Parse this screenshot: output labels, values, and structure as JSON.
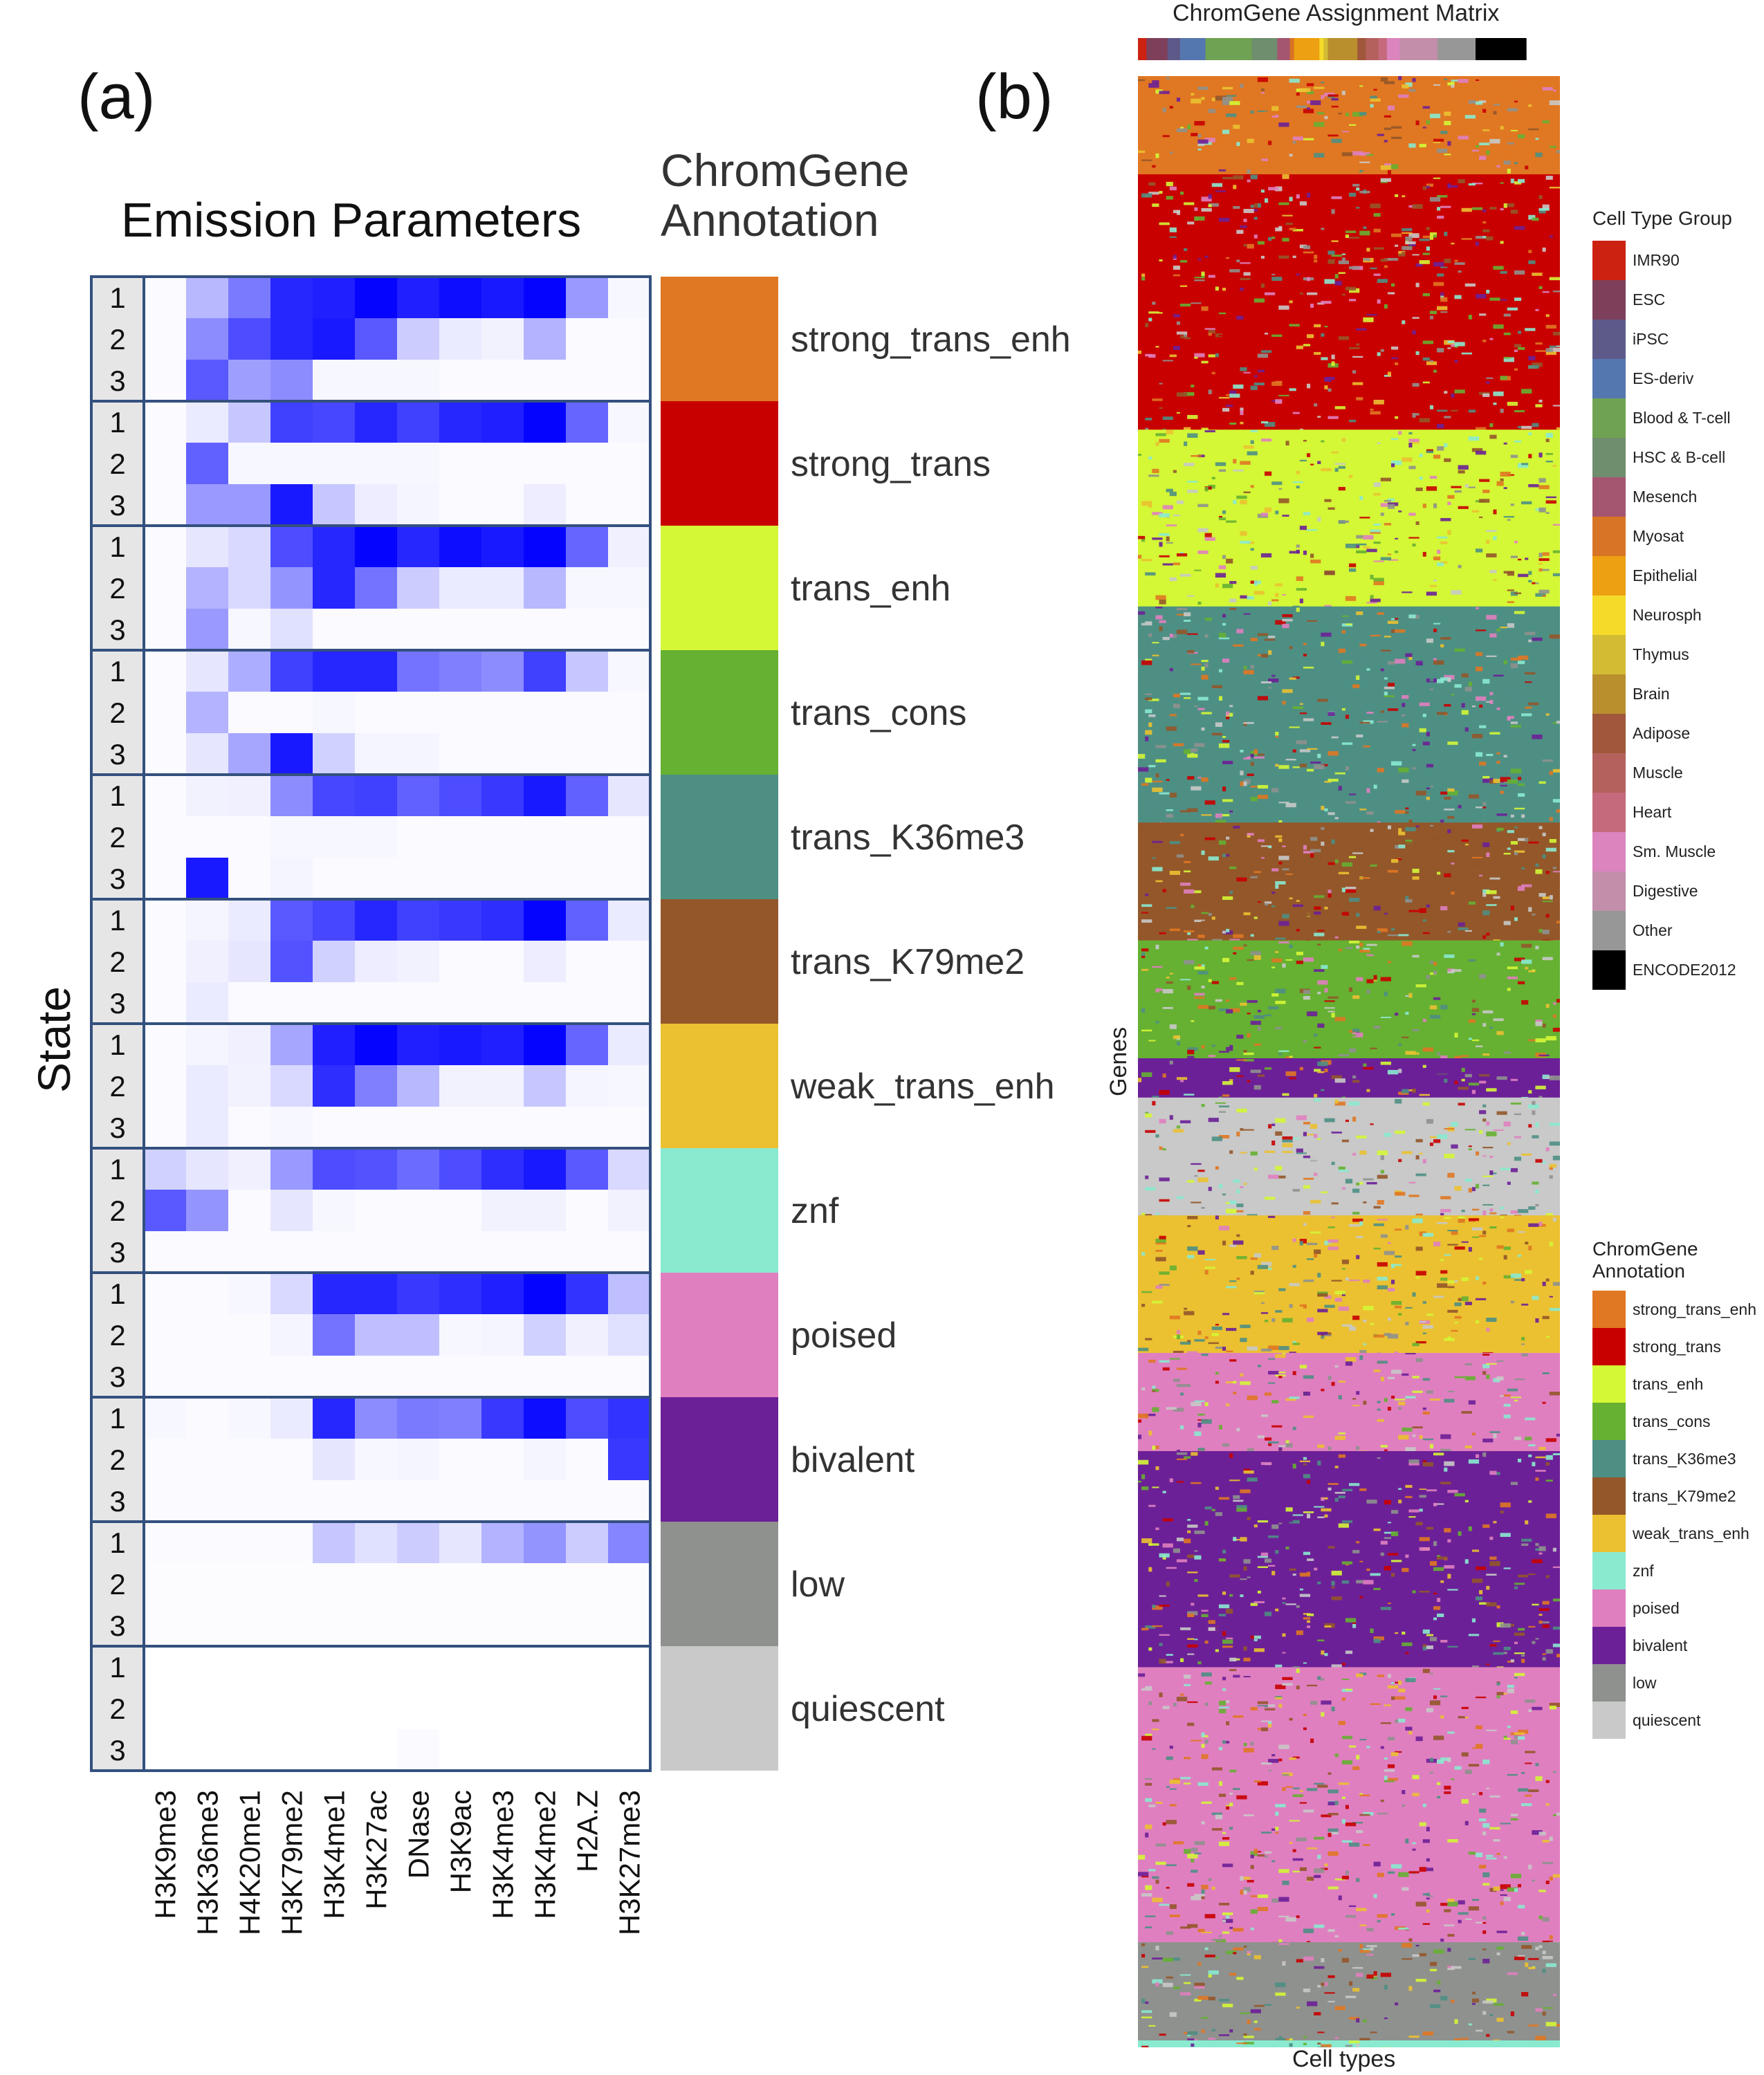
{
  "panel_a": {
    "letter": "(a)",
    "title": "Emission Parameters",
    "y_label": "State",
    "annotation_title_line1": "ChromGene",
    "annotation_title_line2": "Annotation"
  },
  "panel_b": {
    "letter": "(b)",
    "title": "ChromGene Assignment Matrix",
    "x_label": "Cell types",
    "y_label": "Genes",
    "legend_cell_title": "Cell Type Group",
    "legend_annot_title_line1": "ChromGene",
    "legend_annot_title_line2": "Annotation"
  },
  "chart_data": [
    {
      "type": "heatmap",
      "title": "Emission Parameters",
      "ylabel": "State",
      "columns": [
        "H3K9me3",
        "H3K36me3",
        "H4K20me1",
        "H3K79me2",
        "H3K4me1",
        "H3K27ac",
        "DNase",
        "H3K9ac",
        "H3K4me3",
        "H3K4me2",
        "H2A.Z",
        "H3K27me3"
      ],
      "row_labels": [
        "1",
        "2",
        "3"
      ],
      "color_scale": [
        "#ffffff",
        "#0000ff"
      ],
      "annotations": [
        {
          "label": "strong_trans_enh",
          "color": "#E07722",
          "rows": [
            [
              0.02,
              0.28,
              0.52,
              0.85,
              0.88,
              0.98,
              0.88,
              0.95,
              0.9,
              0.98,
              0.4,
              0.03
            ],
            [
              0.02,
              0.45,
              0.7,
              0.85,
              0.9,
              0.65,
              0.2,
              0.08,
              0.05,
              0.3,
              0.02,
              0.02
            ],
            [
              0.02,
              0.65,
              0.38,
              0.45,
              0.03,
              0.03,
              0.03,
              0.02,
              0.02,
              0.02,
              0.02,
              0.02
            ]
          ]
        },
        {
          "label": "strong_trans",
          "color": "#C80000",
          "rows": [
            [
              0.02,
              0.08,
              0.22,
              0.75,
              0.72,
              0.85,
              0.75,
              0.85,
              0.88,
              0.98,
              0.6,
              0.03
            ],
            [
              0.02,
              0.62,
              0.03,
              0.03,
              0.03,
              0.03,
              0.03,
              0.02,
              0.02,
              0.02,
              0.02,
              0.02
            ],
            [
              0.02,
              0.4,
              0.4,
              0.9,
              0.22,
              0.07,
              0.04,
              0.02,
              0.02,
              0.07,
              0.02,
              0.02
            ]
          ]
        },
        {
          "label": "trans_enh",
          "color": "#D4F736",
          "rows": [
            [
              0.02,
              0.1,
              0.15,
              0.7,
              0.85,
              0.98,
              0.85,
              0.95,
              0.9,
              0.98,
              0.6,
              0.06
            ],
            [
              0.02,
              0.3,
              0.15,
              0.42,
              0.85,
              0.55,
              0.2,
              0.08,
              0.08,
              0.28,
              0.03,
              0.03
            ],
            [
              0.02,
              0.4,
              0.03,
              0.12,
              0.02,
              0.02,
              0.02,
              0.02,
              0.02,
              0.02,
              0.02,
              0.02
            ]
          ]
        },
        {
          "label": "trans_cons",
          "color": "#66B032",
          "rows": [
            [
              0.02,
              0.1,
              0.32,
              0.75,
              0.85,
              0.85,
              0.55,
              0.5,
              0.45,
              0.75,
              0.22,
              0.03
            ],
            [
              0.02,
              0.3,
              0.02,
              0.02,
              0.03,
              0.02,
              0.02,
              0.02,
              0.02,
              0.02,
              0.02,
              0.02
            ],
            [
              0.02,
              0.1,
              0.35,
              0.9,
              0.18,
              0.04,
              0.04,
              0.02,
              0.02,
              0.02,
              0.02,
              0.02
            ]
          ]
        },
        {
          "label": "trans_K36me3",
          "color": "#4E8F84",
          "rows": [
            [
              0.02,
              0.05,
              0.06,
              0.45,
              0.72,
              0.75,
              0.62,
              0.7,
              0.78,
              0.9,
              0.62,
              0.1
            ],
            [
              0.02,
              0.02,
              0.02,
              0.03,
              0.03,
              0.03,
              0.02,
              0.02,
              0.02,
              0.02,
              0.02,
              0.02
            ],
            [
              0.02,
              0.9,
              0.02,
              0.04,
              0.02,
              0.02,
              0.02,
              0.02,
              0.02,
              0.02,
              0.02,
              0.02
            ]
          ]
        },
        {
          "label": "trans_K79me2",
          "color": "#93572A",
          "rows": [
            [
              0.02,
              0.04,
              0.08,
              0.65,
              0.72,
              0.85,
              0.75,
              0.78,
              0.82,
              0.98,
              0.62,
              0.08
            ],
            [
              0.02,
              0.06,
              0.1,
              0.68,
              0.18,
              0.07,
              0.05,
              0.02,
              0.02,
              0.07,
              0.02,
              0.02
            ],
            [
              0.02,
              0.08,
              0.02,
              0.02,
              0.02,
              0.02,
              0.02,
              0.02,
              0.02,
              0.02,
              0.02,
              0.02
            ]
          ]
        },
        {
          "label": "weak_trans_enh",
          "color": "#EBC131",
          "rows": [
            [
              0.02,
              0.04,
              0.06,
              0.35,
              0.88,
              0.98,
              0.88,
              0.9,
              0.88,
              0.98,
              0.6,
              0.08
            ],
            [
              0.02,
              0.08,
              0.05,
              0.15,
              0.82,
              0.5,
              0.28,
              0.05,
              0.05,
              0.22,
              0.04,
              0.03
            ],
            [
              0.02,
              0.08,
              0.02,
              0.03,
              0.02,
              0.02,
              0.02,
              0.02,
              0.02,
              0.02,
              0.02,
              0.02
            ]
          ]
        },
        {
          "label": "znf",
          "color": "#89EAD0",
          "rows": [
            [
              0.18,
              0.1,
              0.06,
              0.4,
              0.7,
              0.68,
              0.58,
              0.7,
              0.82,
              0.9,
              0.65,
              0.15
            ],
            [
              0.65,
              0.42,
              0.02,
              0.1,
              0.03,
              0.02,
              0.02,
              0.02,
              0.05,
              0.05,
              0.02,
              0.05
            ],
            [
              0.02,
              0.02,
              0.02,
              0.02,
              0.02,
              0.02,
              0.02,
              0.02,
              0.02,
              0.02,
              0.02,
              0.02
            ]
          ]
        },
        {
          "label": "poised",
          "color": "#E07FC0",
          "rows": [
            [
              0.02,
              0.02,
              0.03,
              0.15,
              0.85,
              0.85,
              0.78,
              0.82,
              0.88,
              0.98,
              0.8,
              0.25
            ],
            [
              0.02,
              0.02,
              0.02,
              0.04,
              0.55,
              0.25,
              0.25,
              0.03,
              0.04,
              0.18,
              0.06,
              0.12
            ],
            [
              0.02,
              0.02,
              0.02,
              0.02,
              0.02,
              0.02,
              0.02,
              0.02,
              0.02,
              0.02,
              0.02,
              0.02
            ]
          ]
        },
        {
          "label": "bivalent",
          "color": "#6C2097",
          "rows": [
            [
              0.03,
              0.02,
              0.03,
              0.08,
              0.85,
              0.45,
              0.52,
              0.5,
              0.78,
              0.95,
              0.7,
              0.8
            ],
            [
              0.02,
              0.02,
              0.02,
              0.02,
              0.1,
              0.03,
              0.04,
              0.02,
              0.02,
              0.04,
              0.02,
              0.78
            ],
            [
              0.02,
              0.02,
              0.02,
              0.02,
              0.02,
              0.02,
              0.02,
              0.02,
              0.02,
              0.02,
              0.02,
              0.02
            ]
          ]
        },
        {
          "label": "low",
          "color": "#8F918E",
          "rows": [
            [
              0.02,
              0.02,
              0.02,
              0.02,
              0.22,
              0.12,
              0.2,
              0.1,
              0.3,
              0.42,
              0.2,
              0.48
            ],
            [
              0.01,
              0.01,
              0.01,
              0.01,
              0.01,
              0.01,
              0.01,
              0.01,
              0.01,
              0.01,
              0.01,
              0.01
            ],
            [
              0.01,
              0.01,
              0.01,
              0.01,
              0.01,
              0.01,
              0.01,
              0.01,
              0.01,
              0.01,
              0.01,
              0.01
            ]
          ]
        },
        {
          "label": "quiescent",
          "color": "#C8C9C8",
          "rows": [
            [
              0.0,
              0.0,
              0.0,
              0.0,
              0.0,
              0.0,
              0.0,
              0.0,
              0.0,
              0.0,
              0.0,
              0.0
            ],
            [
              0.0,
              0.0,
              0.0,
              0.0,
              0.0,
              0.0,
              0.0,
              0.0,
              0.0,
              0.0,
              0.0,
              0.0
            ],
            [
              0.0,
              0.0,
              0.0,
              0.0,
              0.0,
              0.0,
              0.02,
              0.0,
              0.0,
              0.0,
              0.0,
              0.0
            ]
          ]
        }
      ]
    },
    {
      "type": "heatmap",
      "title": "ChromGene Assignment Matrix",
      "xlabel": "Cell types",
      "ylabel": "Genes",
      "row_blocks_top_to_bottom": [
        {
          "annotation": "strong_trans_enh",
          "color": "#E07722",
          "share": 0.05
        },
        {
          "annotation": "strong_trans",
          "color": "#C80000",
          "share": 0.13
        },
        {
          "annotation": "trans_enh",
          "color": "#D4F736",
          "share": 0.09
        },
        {
          "annotation": "trans_K36me3",
          "color": "#4E8F84",
          "share": 0.11
        },
        {
          "annotation": "trans_K79me2",
          "color": "#93572A",
          "share": 0.06
        },
        {
          "annotation": "trans_cons",
          "color": "#66B032",
          "share": 0.06
        },
        {
          "annotation": "bivalent",
          "color": "#6C2097",
          "share": 0.02
        },
        {
          "annotation": "quiescent",
          "color": "#C8C9C8",
          "share": 0.06
        },
        {
          "annotation": "weak_trans_enh",
          "color": "#EBC131",
          "share": 0.07
        },
        {
          "annotation": "poised",
          "color": "#E07FC0",
          "share": 0.05
        },
        {
          "annotation": "bivalent",
          "color": "#6C2097",
          "share": 0.11
        },
        {
          "annotation": "poised",
          "color": "#E07FC0",
          "share": 0.14
        },
        {
          "annotation": "low",
          "color": "#8F918E",
          "share": 0.05
        },
        {
          "annotation": "znf",
          "color": "#89EAD0",
          "share": 0.04
        }
      ],
      "cell_type_groups": [
        {
          "label": "IMR90",
          "color": "#CC2211",
          "share": 0.02
        },
        {
          "label": "ESC",
          "color": "#7E3F5A",
          "share": 0.05
        },
        {
          "label": "iPSC",
          "color": "#5D5A8A",
          "share": 0.03
        },
        {
          "label": "ES-deriv",
          "color": "#5577B0",
          "share": 0.06
        },
        {
          "label": "Blood & T-cell",
          "color": "#6FA252",
          "share": 0.11
        },
        {
          "label": "HSC & B-cell",
          "color": "#6E8E6E",
          "share": 0.06
        },
        {
          "label": "Mesench",
          "color": "#A45670",
          "share": 0.03
        },
        {
          "label": "Myosat",
          "color": "#D87425",
          "share": 0.01
        },
        {
          "label": "Epithelial",
          "color": "#EDA011",
          "share": 0.06
        },
        {
          "label": "Neurosph",
          "color": "#F5DA2A",
          "share": 0.01
        },
        {
          "label": "Thymus",
          "color": "#D3BC34",
          "share": 0.01
        },
        {
          "label": "Brain",
          "color": "#B98F2E",
          "share": 0.07
        },
        {
          "label": "Adipose",
          "color": "#A0573B",
          "share": 0.02
        },
        {
          "label": "Muscle",
          "color": "#B4615D",
          "share": 0.03
        },
        {
          "label": "Heart",
          "color": "#C56A7C",
          "share": 0.02
        },
        {
          "label": "Sm. Muscle",
          "color": "#DB84BE",
          "share": 0.03
        },
        {
          "label": "Digestive",
          "color": "#C28EAA",
          "share": 0.09
        },
        {
          "label": "Other",
          "color": "#979797",
          "share": 0.09
        },
        {
          "label": "ENCODE2012",
          "color": "#000000",
          "share": 0.12
        }
      ],
      "annotation_legend": [
        {
          "label": "strong_trans_enh",
          "color": "#E07722"
        },
        {
          "label": "strong_trans",
          "color": "#C80000"
        },
        {
          "label": "trans_enh",
          "color": "#D4F736"
        },
        {
          "label": "trans_cons",
          "color": "#66B032"
        },
        {
          "label": "trans_K36me3",
          "color": "#4E8F84"
        },
        {
          "label": "trans_K79me2",
          "color": "#93572A"
        },
        {
          "label": "weak_trans_enh",
          "color": "#EBC131"
        },
        {
          "label": "znf",
          "color": "#89EAD0"
        },
        {
          "label": "poised",
          "color": "#E07FC0"
        },
        {
          "label": "bivalent",
          "color": "#6C2097"
        },
        {
          "label": "low",
          "color": "#8F918E"
        },
        {
          "label": "quiescent",
          "color": "#C8C9C8"
        }
      ]
    }
  ]
}
